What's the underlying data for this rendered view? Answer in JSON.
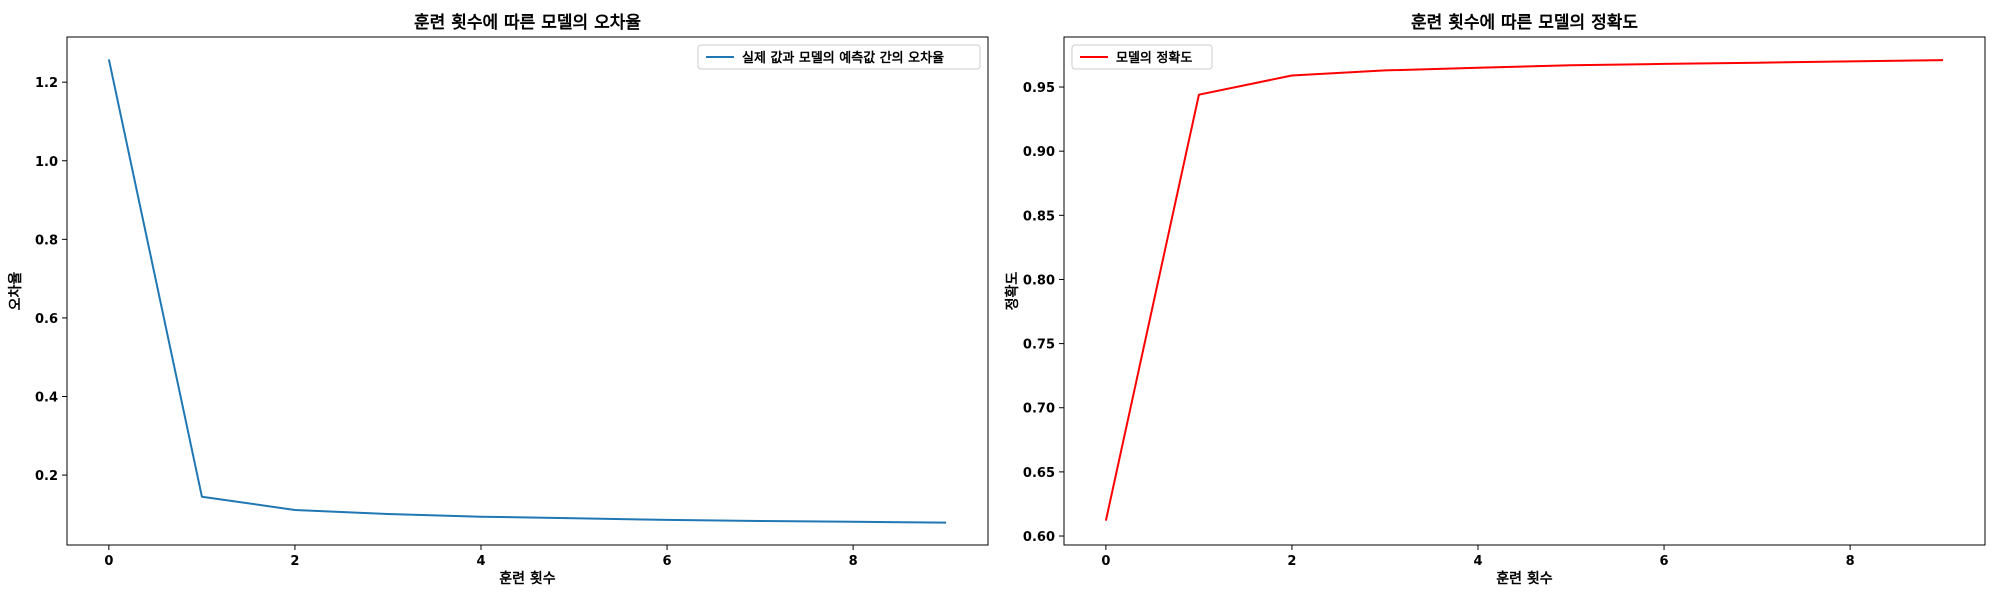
{
  "chart_data": [
    {
      "type": "line",
      "title": "훈련 횟수에 따른 모델의 오차율",
      "xlabel": "훈련 횟수",
      "ylabel": "오차율",
      "xlim": [
        -0.45,
        9.45
      ],
      "ylim": [
        0.022,
        1.315
      ],
      "x_ticks": [
        0,
        2,
        4,
        6,
        8
      ],
      "y_ticks": [
        0.2,
        0.4,
        0.6,
        0.8,
        1.0,
        1.2
      ],
      "x_tick_labels": [
        "0",
        "2",
        "4",
        "6",
        "8"
      ],
      "y_tick_labels": [
        "0.2",
        "0.4",
        "0.6",
        "0.8",
        "1.0",
        "1.2"
      ],
      "grid": false,
      "legend_position": "upper right",
      "x": [
        0,
        1,
        2,
        3,
        4,
        5,
        6,
        7,
        8,
        9
      ],
      "series": [
        {
          "name": "실제 값과 모델의 예측값 간의 오차율",
          "color": "#1f77b4",
          "values": [
            1.258,
            0.145,
            0.111,
            0.101,
            0.094,
            0.09,
            0.086,
            0.083,
            0.081,
            0.079
          ]
        }
      ]
    },
    {
      "type": "line",
      "title": "훈련 횟수에 따른 모델의 정확도",
      "xlabel": "훈련 횟수",
      "ylabel": "정확도",
      "xlim": [
        -0.45,
        9.45
      ],
      "ylim": [
        0.593,
        0.989
      ],
      "x_ticks": [
        0,
        2,
        4,
        6,
        8
      ],
      "y_ticks": [
        0.6,
        0.65,
        0.7,
        0.75,
        0.8,
        0.85,
        0.9,
        0.95
      ],
      "x_tick_labels": [
        "0",
        "2",
        "4",
        "6",
        "8"
      ],
      "y_tick_labels": [
        "0.60",
        "0.65",
        "0.70",
        "0.75",
        "0.80",
        "0.85",
        "0.90",
        "0.95"
      ],
      "grid": false,
      "legend_position": "upper left",
      "x": [
        0,
        1,
        2,
        3,
        4,
        5,
        6,
        7,
        8,
        9
      ],
      "series": [
        {
          "name": "모델의 정확도",
          "color": "#ff0000",
          "values": [
            0.612,
            0.944,
            0.959,
            0.963,
            0.965,
            0.967,
            0.968,
            0.969,
            0.97,
            0.971
          ]
        }
      ]
    }
  ]
}
